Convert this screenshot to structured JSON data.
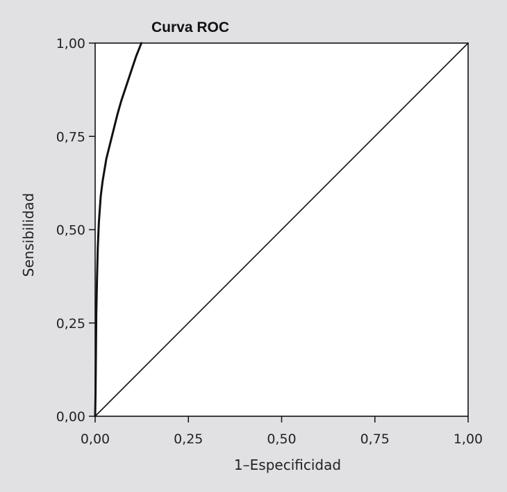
{
  "chart_data": {
    "type": "line",
    "title": "Curva ROC",
    "xlabel": "1–Especificidad",
    "ylabel": "Sensibilidad",
    "xlim": [
      0,
      1
    ],
    "ylim": [
      0,
      1
    ],
    "x_ticks": [
      "0,00",
      "0,25",
      "0,50",
      "0,75",
      "1,00"
    ],
    "y_ticks": [
      "0,00",
      "0,25",
      "0,50",
      "0,75",
      "1,00"
    ],
    "grid": false,
    "series": [
      {
        "points": [
          [
            0.0,
            0.0
          ],
          [
            0.001,
            0.06
          ],
          [
            0.002,
            0.16
          ],
          [
            0.003,
            0.27
          ],
          [
            0.005,
            0.37
          ],
          [
            0.007,
            0.45
          ],
          [
            0.01,
            0.52
          ],
          [
            0.015,
            0.59
          ],
          [
            0.02,
            0.63
          ],
          [
            0.03,
            0.69
          ],
          [
            0.04,
            0.73
          ],
          [
            0.05,
            0.77
          ],
          [
            0.06,
            0.81
          ],
          [
            0.07,
            0.845
          ],
          [
            0.08,
            0.875
          ],
          [
            0.09,
            0.905
          ],
          [
            0.1,
            0.935
          ],
          [
            0.11,
            0.965
          ],
          [
            0.12,
            0.99
          ],
          [
            0.124,
            1.0
          ]
        ],
        "color": "#111111"
      },
      {
        "points": [
          [
            0.0,
            0.0
          ],
          [
            1.0,
            1.0
          ]
        ],
        "color": "#111111"
      }
    ]
  }
}
